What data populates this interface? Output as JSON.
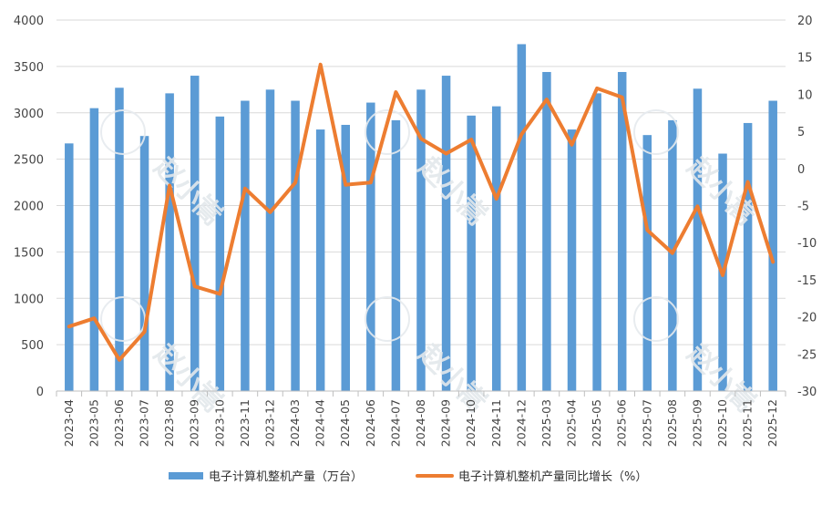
{
  "chart_data": {
    "type": "bar+line",
    "categories": [
      "2023-04",
      "2023-05",
      "2023-06",
      "2023-07",
      "2023-08",
      "2023-09",
      "2023-10",
      "2023-11",
      "2023-12",
      "2024-03",
      "2024-04",
      "2024-05",
      "2024-06",
      "2024-07",
      "2024-08",
      "2024-09",
      "2024-10",
      "2024-11",
      "2024-12",
      "2025-03",
      "2025-04",
      "2025-05",
      "2025-06",
      "2025-07",
      "2025-08",
      "2025-09",
      "2025-10",
      "2025-11",
      "2025-12"
    ],
    "series": [
      {
        "name": "电子计算机整机产量（万台）",
        "type": "bar",
        "axis": "left",
        "color": "#5b9bd5",
        "values": [
          2670,
          3050,
          3270,
          2750,
          3210,
          3400,
          2960,
          3130,
          3250,
          3130,
          2820,
          2870,
          3110,
          2920,
          3250,
          3400,
          2970,
          3070,
          3740,
          3440,
          2820,
          3210,
          3440,
          2760,
          2920,
          3260,
          2560,
          2890,
          3130
        ]
      },
      {
        "name": "电子计算机整机产量同比增长（%）",
        "type": "line",
        "axis": "right",
        "color": "#ed7d31",
        "values": [
          -21.3,
          -20.2,
          -25.8,
          -22.0,
          -2.3,
          -15.9,
          -16.9,
          -2.7,
          -5.9,
          -1.9,
          14.0,
          -2.2,
          -1.9,
          10.3,
          4.0,
          2.0,
          3.9,
          -4.1,
          4.6,
          9.3,
          3.2,
          10.8,
          9.6,
          -8.3,
          -11.4,
          -5.1,
          -14.4,
          -1.8,
          -12.6
        ]
      }
    ],
    "y_left": {
      "min": 0,
      "max": 4000,
      "step": 500,
      "ticks": [
        "0",
        "500",
        "1000",
        "1500",
        "2000",
        "2500",
        "3000",
        "3500",
        "4000"
      ]
    },
    "y_right": {
      "min": -30,
      "max": 20,
      "step": 5,
      "ticks": [
        "-30",
        "-25",
        "-20",
        "-15",
        "-10",
        "-5",
        "0",
        "5",
        "10",
        "15",
        "20"
      ]
    },
    "grid": true,
    "legend_position": "bottom",
    "watermark_text": "赵小嵩"
  }
}
